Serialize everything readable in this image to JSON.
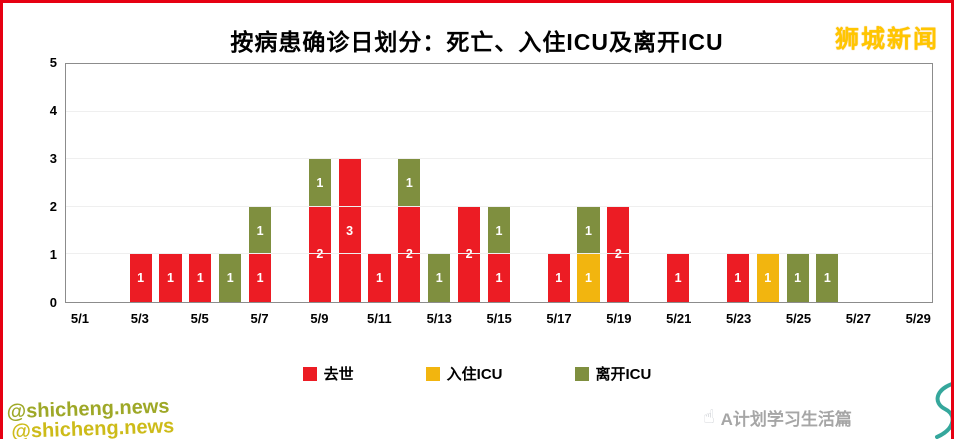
{
  "page": {
    "title": "按病患确诊日划分：死亡、入住ICU及离开ICU",
    "brand_logo": "狮城新闻",
    "watermark": "@shicheng.news",
    "footer": {
      "hand_icon": "☝",
      "brand_text": "A计划学习生活篇"
    }
  },
  "colors": {
    "frame_red": "#e60012",
    "death_red": "#ec1c24",
    "icu_in_yellow": "#f2b50f",
    "icu_out_olive": "#7f8f3f",
    "logo_gold": "#ffc600",
    "watermark_green": "#99a41c",
    "swirl_teal": "#35a79c"
  },
  "legend": [
    {
      "label": "去世",
      "color": "#ec1c24"
    },
    {
      "label": "入住ICU",
      "color": "#f2b50f"
    },
    {
      "label": "离开ICU",
      "color": "#7f8f3f"
    }
  ],
  "chart_data": {
    "type": "bar",
    "stacked": true,
    "title": "按病患确诊日划分：死亡、入住ICU及离开ICU",
    "categories": [
      "5/1",
      "5/2",
      "5/3",
      "5/4",
      "5/5",
      "5/6",
      "5/7",
      "5/8",
      "5/9",
      "5/10",
      "5/11",
      "5/12",
      "5/13",
      "5/14",
      "5/15",
      "5/16",
      "5/17",
      "5/18",
      "5/19",
      "5/20",
      "5/21",
      "5/22",
      "5/23",
      "5/24",
      "5/25",
      "5/26",
      "5/27",
      "5/28",
      "5/29"
    ],
    "x_tick_labels": [
      "5/1",
      "5/3",
      "5/5",
      "5/7",
      "5/9",
      "5/11",
      "5/13",
      "5/15",
      "5/17",
      "5/19",
      "5/21",
      "5/23",
      "5/25",
      "5/27",
      "5/29"
    ],
    "series": [
      {
        "name": "去世",
        "color": "#ec1c24",
        "values": [
          0,
          0,
          1,
          1,
          1,
          0,
          1,
          0,
          2,
          3,
          1,
          2,
          0,
          2,
          1,
          0,
          1,
          0,
          2,
          0,
          1,
          0,
          1,
          0,
          0,
          0,
          0,
          0,
          0
        ]
      },
      {
        "name": "入住ICU",
        "color": "#f2b50f",
        "values": [
          0,
          0,
          0,
          0,
          0,
          0,
          0,
          0,
          0,
          0,
          0,
          0,
          0,
          0,
          0,
          0,
          0,
          1,
          0,
          0,
          0,
          0,
          0,
          1,
          0,
          0,
          0,
          0,
          0
        ]
      },
      {
        "name": "离开ICU",
        "color": "#7f8f3f",
        "values": [
          0,
          0,
          0,
          0,
          0,
          1,
          1,
          0,
          1,
          0,
          0,
          1,
          1,
          0,
          1,
          0,
          0,
          1,
          0,
          0,
          0,
          0,
          0,
          0,
          1,
          1,
          0,
          0,
          0
        ]
      }
    ],
    "ylabel": "",
    "xlabel": "",
    "ylim": [
      0,
      5
    ],
    "yticks": [
      0,
      1,
      2,
      3,
      4,
      5
    ],
    "legend_position": "bottom",
    "grid": false
  }
}
